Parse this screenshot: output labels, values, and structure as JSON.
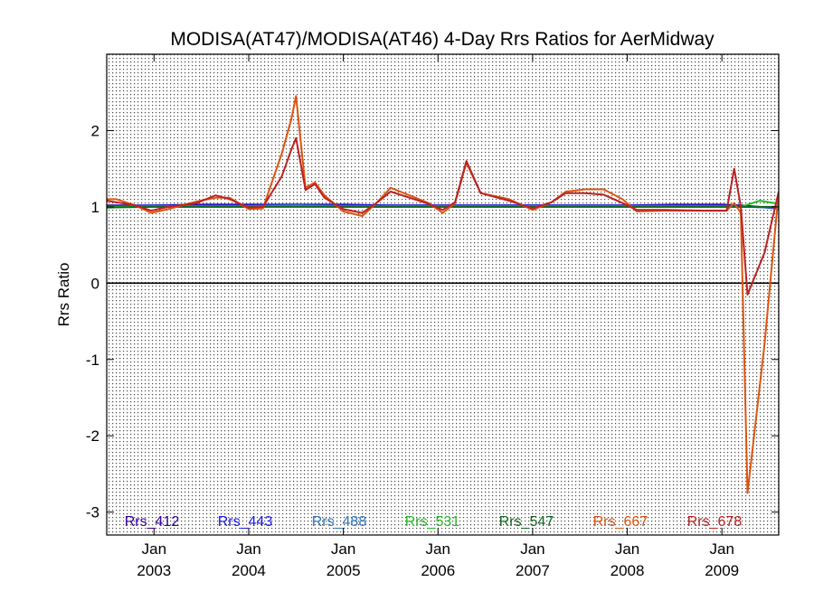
{
  "chart_data": {
    "type": "line",
    "title": "MODISA(AT47)/MODISA(AT46) 4-Day Rrs Ratios for AerMidway",
    "ylabel": "Rrs Ratio",
    "xlabel": "",
    "xlim": [
      2002.5,
      2009.6
    ],
    "ylim": [
      -3.3,
      3.0
    ],
    "y_ticks": [
      -3,
      -2,
      -1,
      0,
      1,
      2
    ],
    "x_ticks": [
      {
        "x": 2003.0,
        "month": "Jan",
        "year": "2003"
      },
      {
        "x": 2004.0,
        "month": "Jan",
        "year": "2004"
      },
      {
        "x": 2005.0,
        "month": "Jan",
        "year": "2005"
      },
      {
        "x": 2006.0,
        "month": "Jan",
        "year": "2006"
      },
      {
        "x": 2007.0,
        "month": "Jan",
        "year": "2007"
      },
      {
        "x": 2008.0,
        "month": "Jan",
        "year": "2008"
      },
      {
        "x": 2009.0,
        "month": "Jan",
        "year": "2009"
      }
    ],
    "reference_line": 0,
    "grid": true,
    "legend_position": "bottom",
    "series": [
      {
        "name": "Rrs_412",
        "color": "#330099",
        "x": [
          2002.5,
          2003.0,
          2003.5,
          2004.0,
          2004.5,
          2005.0,
          2005.5,
          2006.0,
          2006.5,
          2007.0,
          2007.5,
          2008.0,
          2008.5,
          2009.0,
          2009.2,
          2009.6
        ],
        "y": [
          1.02,
          1.02,
          1.03,
          1.03,
          1.03,
          1.03,
          1.02,
          1.02,
          1.02,
          1.02,
          1.02,
          1.02,
          1.03,
          1.03,
          1.02,
          0.98
        ]
      },
      {
        "name": "Rrs_443",
        "color": "#1a1ae6",
        "x": [
          2002.5,
          2003.0,
          2003.5,
          2004.0,
          2004.5,
          2005.0,
          2005.5,
          2006.0,
          2006.5,
          2007.0,
          2007.5,
          2008.0,
          2008.5,
          2009.0,
          2009.2,
          2009.6
        ],
        "y": [
          1.01,
          1.02,
          1.02,
          1.02,
          1.03,
          1.02,
          1.02,
          1.02,
          1.02,
          1.02,
          1.02,
          1.02,
          1.02,
          1.02,
          1.01,
          0.98
        ]
      },
      {
        "name": "Rrs_488",
        "color": "#3377bb",
        "x": [
          2002.5,
          2003.0,
          2003.5,
          2004.0,
          2004.5,
          2005.0,
          2005.5,
          2006.0,
          2006.5,
          2007.0,
          2007.5,
          2008.0,
          2008.5,
          2009.0,
          2009.2,
          2009.6
        ],
        "y": [
          1.0,
          1.01,
          1.01,
          1.01,
          1.02,
          1.01,
          1.01,
          1.01,
          1.01,
          1.01,
          1.01,
          1.01,
          1.01,
          1.01,
          1.0,
          0.99
        ]
      },
      {
        "name": "Rrs_531",
        "color": "#22bb22",
        "x": [
          2002.5,
          2003.0,
          2003.5,
          2004.0,
          2004.5,
          2005.0,
          2005.5,
          2006.0,
          2006.5,
          2007.0,
          2007.5,
          2008.0,
          2008.5,
          2009.0,
          2009.2,
          2009.4,
          2009.6
        ],
        "y": [
          1.0,
          1.0,
          1.0,
          1.0,
          1.01,
          1.0,
          1.0,
          1.0,
          1.0,
          1.0,
          1.0,
          1.0,
          1.0,
          1.0,
          1.0,
          1.08,
          1.04
        ]
      },
      {
        "name": "Rrs_547",
        "color": "#116622",
        "x": [
          2002.5,
          2003.0,
          2003.5,
          2004.0,
          2004.5,
          2005.0,
          2005.5,
          2006.0,
          2006.5,
          2007.0,
          2007.5,
          2008.0,
          2008.5,
          2009.0,
          2009.2,
          2009.6
        ],
        "y": [
          0.99,
          1.0,
          1.0,
          1.0,
          1.0,
          1.0,
          1.0,
          1.0,
          1.0,
          1.0,
          1.0,
          1.0,
          1.0,
          1.0,
          1.0,
          1.0
        ]
      },
      {
        "name": "Rrs_667",
        "color": "#dd5511",
        "x": [
          2002.5,
          2002.6,
          2002.8,
          2002.97,
          2003.15,
          2003.45,
          2003.65,
          2003.8,
          2004.0,
          2004.15,
          2004.35,
          2004.45,
          2004.5,
          2004.6,
          2004.7,
          2004.8,
          2005.0,
          2005.2,
          2005.35,
          2005.5,
          2005.7,
          2005.9,
          2006.05,
          2006.18,
          2006.3,
          2006.45,
          2006.75,
          2007.0,
          2007.2,
          2007.35,
          2007.5,
          2007.55,
          2007.75,
          2007.95,
          2008.1,
          2008.4,
          2008.8,
          2009.05,
          2009.13,
          2009.2,
          2009.27,
          2009.45,
          2009.6
        ],
        "y": [
          1.1,
          1.1,
          1.02,
          0.92,
          0.97,
          1.07,
          1.12,
          1.12,
          0.97,
          0.98,
          1.7,
          2.15,
          2.45,
          1.25,
          1.32,
          1.15,
          0.94,
          0.88,
          1.05,
          1.25,
          1.15,
          1.05,
          0.92,
          1.05,
          1.58,
          1.18,
          1.1,
          0.96,
          1.06,
          1.2,
          1.22,
          1.23,
          1.23,
          1.1,
          0.94,
          0.95,
          0.95,
          0.95,
          1.05,
          0.92,
          -2.75,
          -0.8,
          1.2
        ]
      },
      {
        "name": "Rrs_678",
        "color": "#bb2222",
        "x": [
          2002.5,
          2002.6,
          2002.8,
          2002.97,
          2003.15,
          2003.45,
          2003.65,
          2003.8,
          2004.0,
          2004.15,
          2004.35,
          2004.45,
          2004.5,
          2004.6,
          2004.7,
          2004.8,
          2005.0,
          2005.2,
          2005.35,
          2005.5,
          2005.7,
          2005.9,
          2006.05,
          2006.18,
          2006.3,
          2006.45,
          2006.75,
          2007.0,
          2007.2,
          2007.35,
          2007.5,
          2007.55,
          2007.75,
          2007.95,
          2008.1,
          2008.4,
          2008.8,
          2009.05,
          2009.13,
          2009.2,
          2009.27,
          2009.45,
          2009.6
        ],
        "y": [
          1.08,
          1.06,
          1.02,
          0.95,
          1.0,
          1.05,
          1.15,
          1.1,
          0.99,
          1.0,
          1.4,
          1.75,
          1.9,
          1.22,
          1.3,
          1.12,
          0.97,
          0.92,
          1.05,
          1.2,
          1.12,
          1.04,
          0.96,
          1.06,
          1.6,
          1.18,
          1.08,
          0.98,
          1.06,
          1.18,
          1.18,
          1.18,
          1.16,
          1.05,
          0.96,
          0.96,
          0.95,
          0.95,
          1.5,
          1.0,
          -0.15,
          0.4,
          1.2
        ]
      }
    ]
  }
}
